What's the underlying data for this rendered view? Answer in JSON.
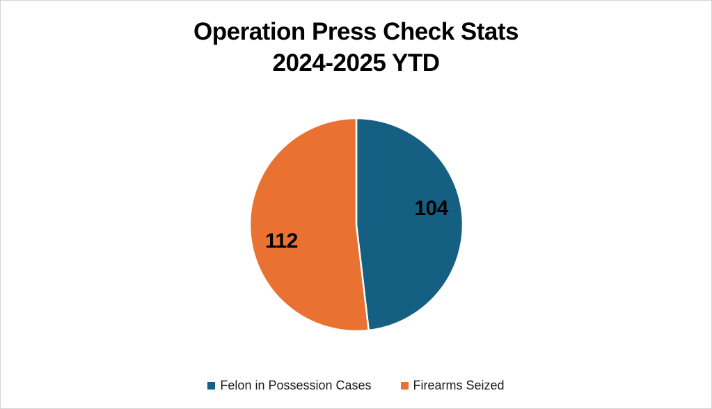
{
  "page": {
    "background": "#ffffff",
    "border_color": "#d4d4d4"
  },
  "chart": {
    "title_line1": "Operation Press Check Stats",
    "title_line2": "2024-2025 YTD"
  },
  "chart_data": {
    "type": "pie",
    "title": "Operation Press Check Stats 2024-2025 YTD",
    "categories": [
      "Felon in Possession Cases",
      "Firearms Seized"
    ],
    "values": [
      104,
      112
    ],
    "data_labels": [
      "104",
      "112"
    ],
    "colors": [
      "#156082",
      "#E97132"
    ],
    "slice_border_color": "#ffffff",
    "start_angle_deg": 0,
    "direction": "clockwise",
    "legend_position": "bottom",
    "label_text_color": "#000000"
  }
}
